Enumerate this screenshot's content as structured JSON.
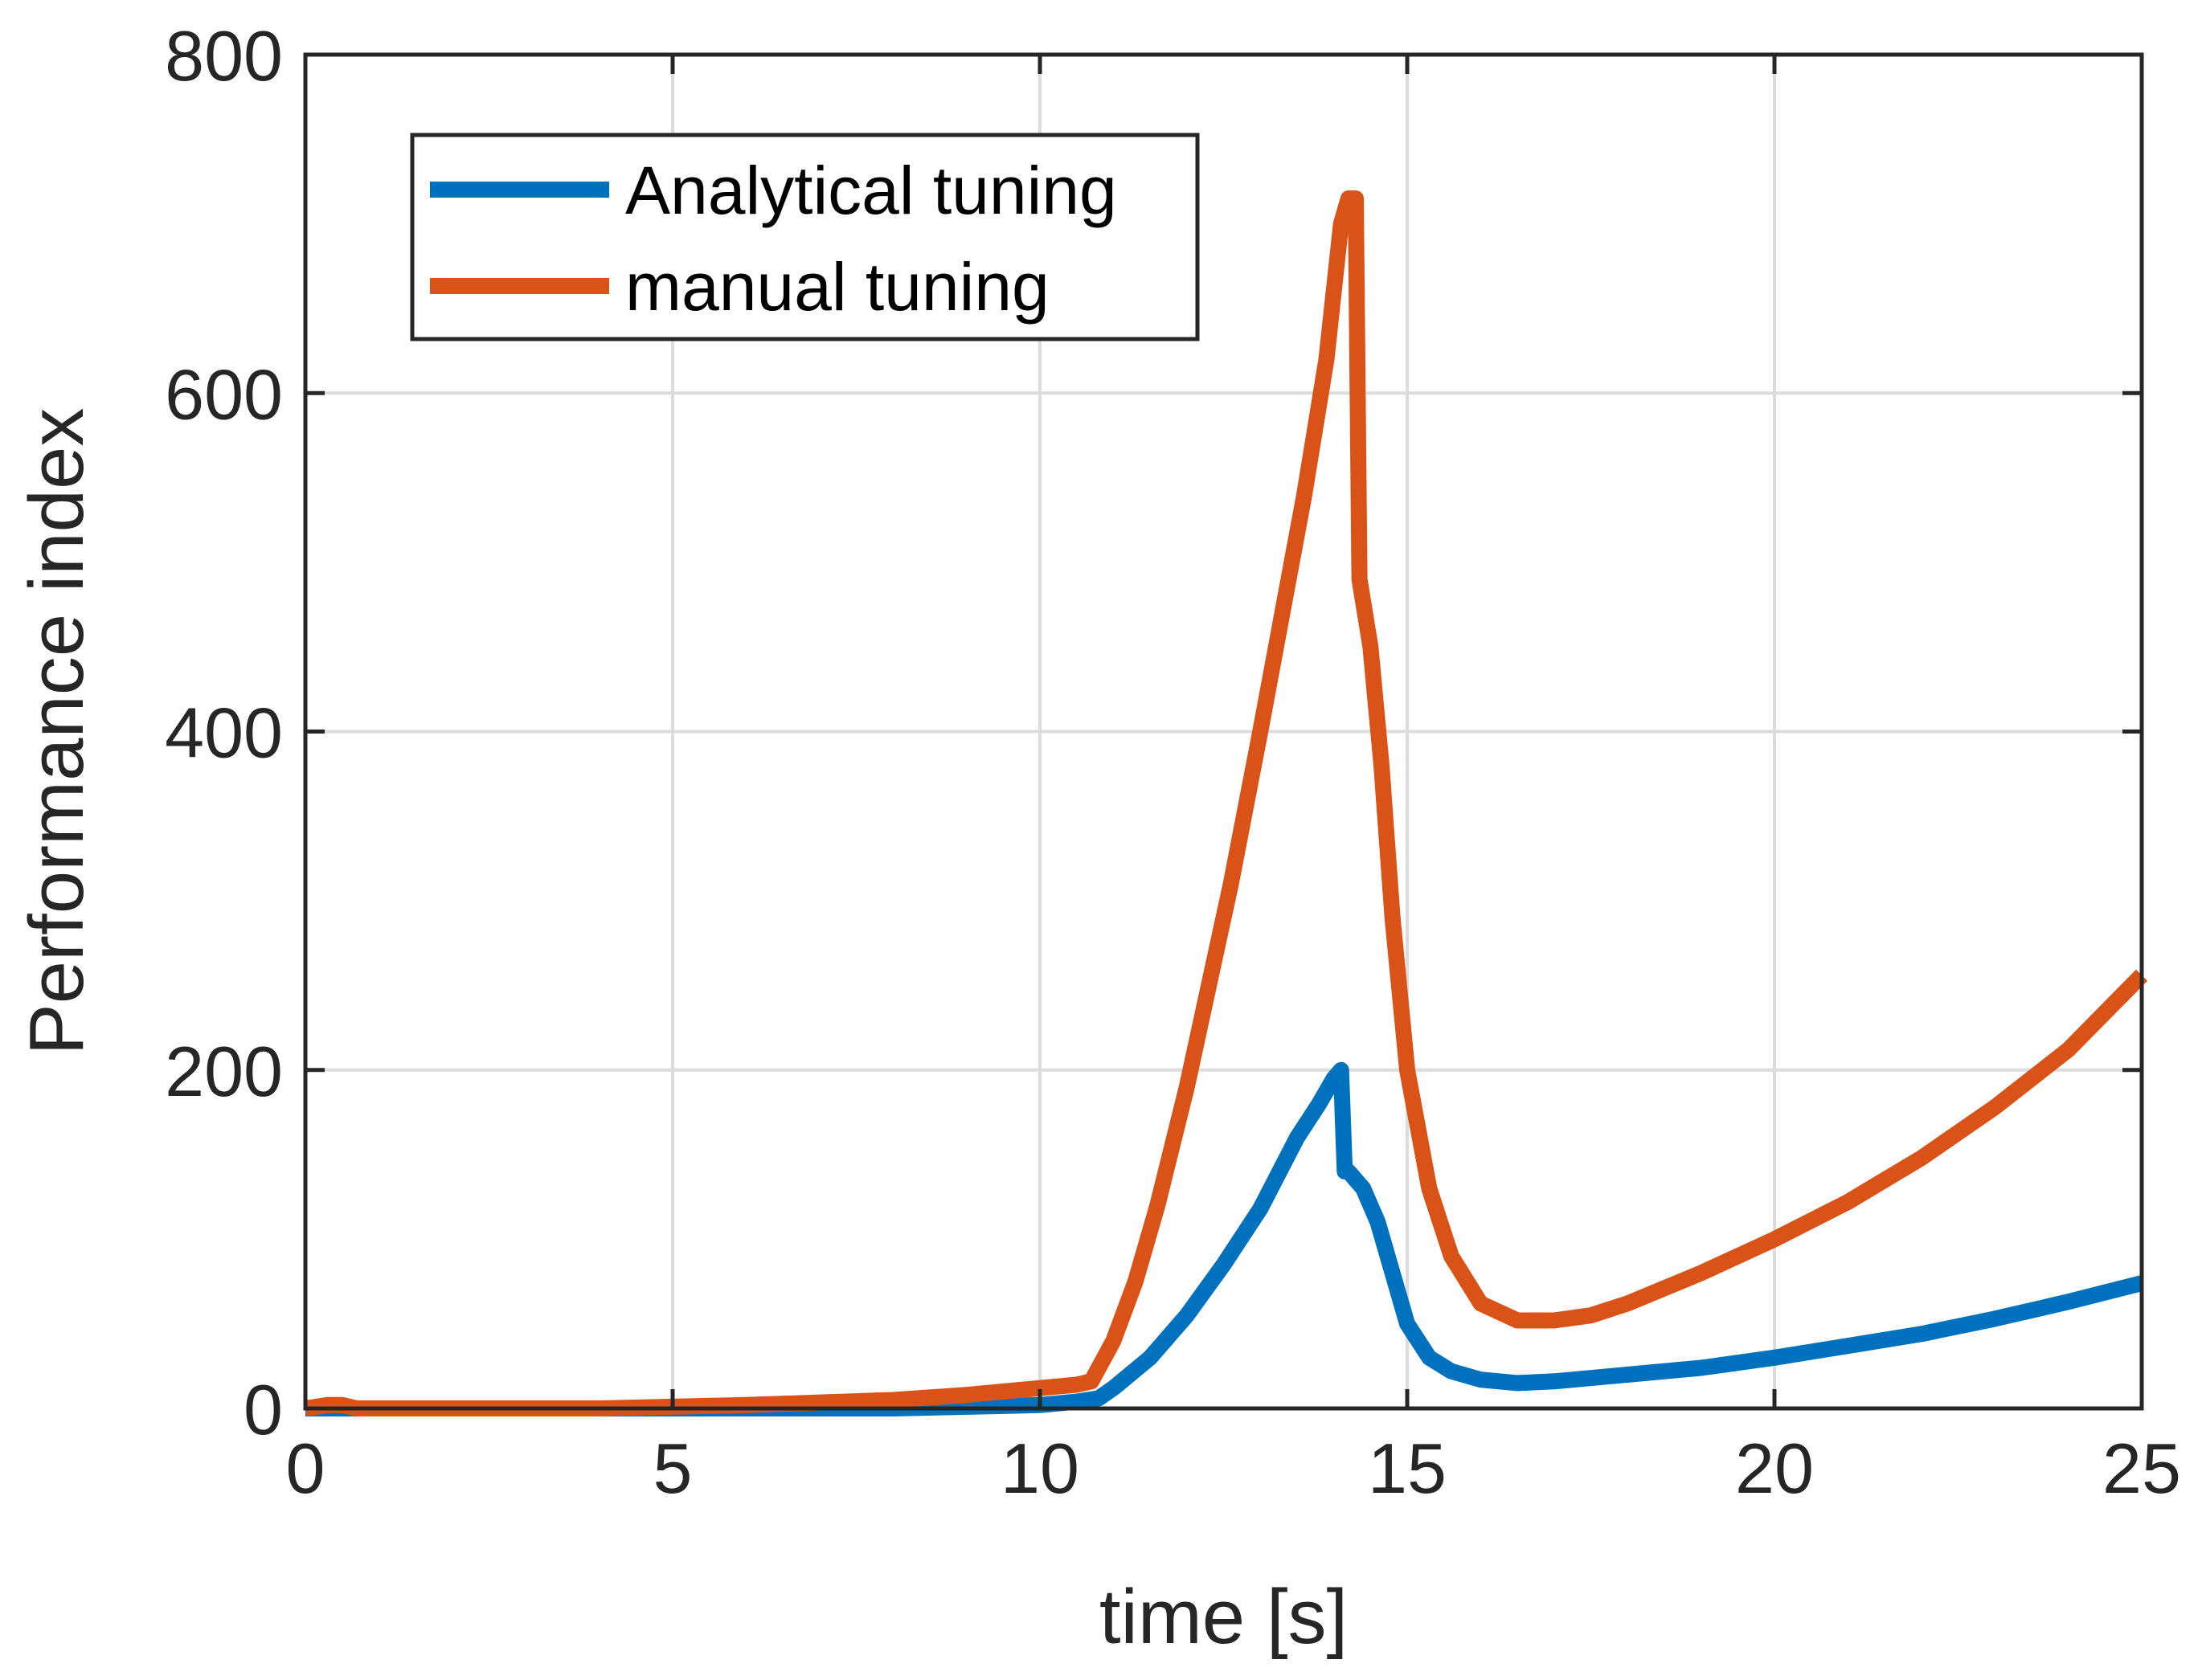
{
  "chart_data": {
    "type": "line",
    "title": "",
    "xlabel": "time [s]",
    "ylabel": "Performance index",
    "xlim": [
      0,
      25
    ],
    "ylim": [
      0,
      800
    ],
    "xticks": [
      0,
      5,
      10,
      15,
      20,
      25
    ],
    "yticks": [
      0,
      200,
      400,
      600,
      800
    ],
    "grid": true,
    "legend_position": "top-left",
    "series": [
      {
        "name": "Analytical tuning",
        "color": "#0072BD",
        "x": [
          0,
          0.3,
          0.6,
          2,
          5,
          8,
          10,
          10.5,
          10.8,
          11,
          11.5,
          12,
          12.5,
          13,
          13.5,
          13.8,
          14.0,
          14.1,
          14.15,
          14.2,
          14.4,
          14.6,
          14.8,
          15.0,
          15.3,
          15.6,
          16.0,
          16.5,
          17.0,
          18.0,
          19.0,
          20.0,
          21.0,
          22.0,
          23.0,
          24.0,
          25.0
        ],
        "y": [
          0,
          0,
          0,
          0,
          0,
          0,
          2,
          4,
          6,
          12,
          30,
          55,
          85,
          118,
          160,
          180,
          195,
          200,
          140,
          140,
          130,
          110,
          80,
          50,
          30,
          22,
          17,
          15,
          16,
          20,
          24,
          30,
          37,
          44,
          53,
          63,
          74
        ]
      },
      {
        "name": "manual tuning",
        "color": "#D95319",
        "x": [
          0,
          0.3,
          0.5,
          0.7,
          2,
          4,
          6,
          8,
          9,
          10,
          10.5,
          10.7,
          11,
          11.3,
          11.6,
          12,
          12.3,
          12.6,
          13,
          13.3,
          13.6,
          13.9,
          14.1,
          14.2,
          14.3,
          14.35,
          14.5,
          14.65,
          14.8,
          15.0,
          15.3,
          15.6,
          16.0,
          16.5,
          17.0,
          17.5,
          18.0,
          19.0,
          20.0,
          21.0,
          22.0,
          23.0,
          24.0,
          25.0
        ],
        "y": [
          0,
          2,
          2,
          0,
          0,
          0,
          2,
          5,
          8,
          12,
          14,
          16,
          40,
          75,
          120,
          190,
          250,
          310,
          400,
          470,
          540,
          620,
          700,
          715,
          715,
          490,
          450,
          380,
          290,
          200,
          130,
          90,
          62,
          52,
          52,
          55,
          62,
          80,
          100,
          122,
          148,
          178,
          212,
          256
        ]
      }
    ]
  }
}
